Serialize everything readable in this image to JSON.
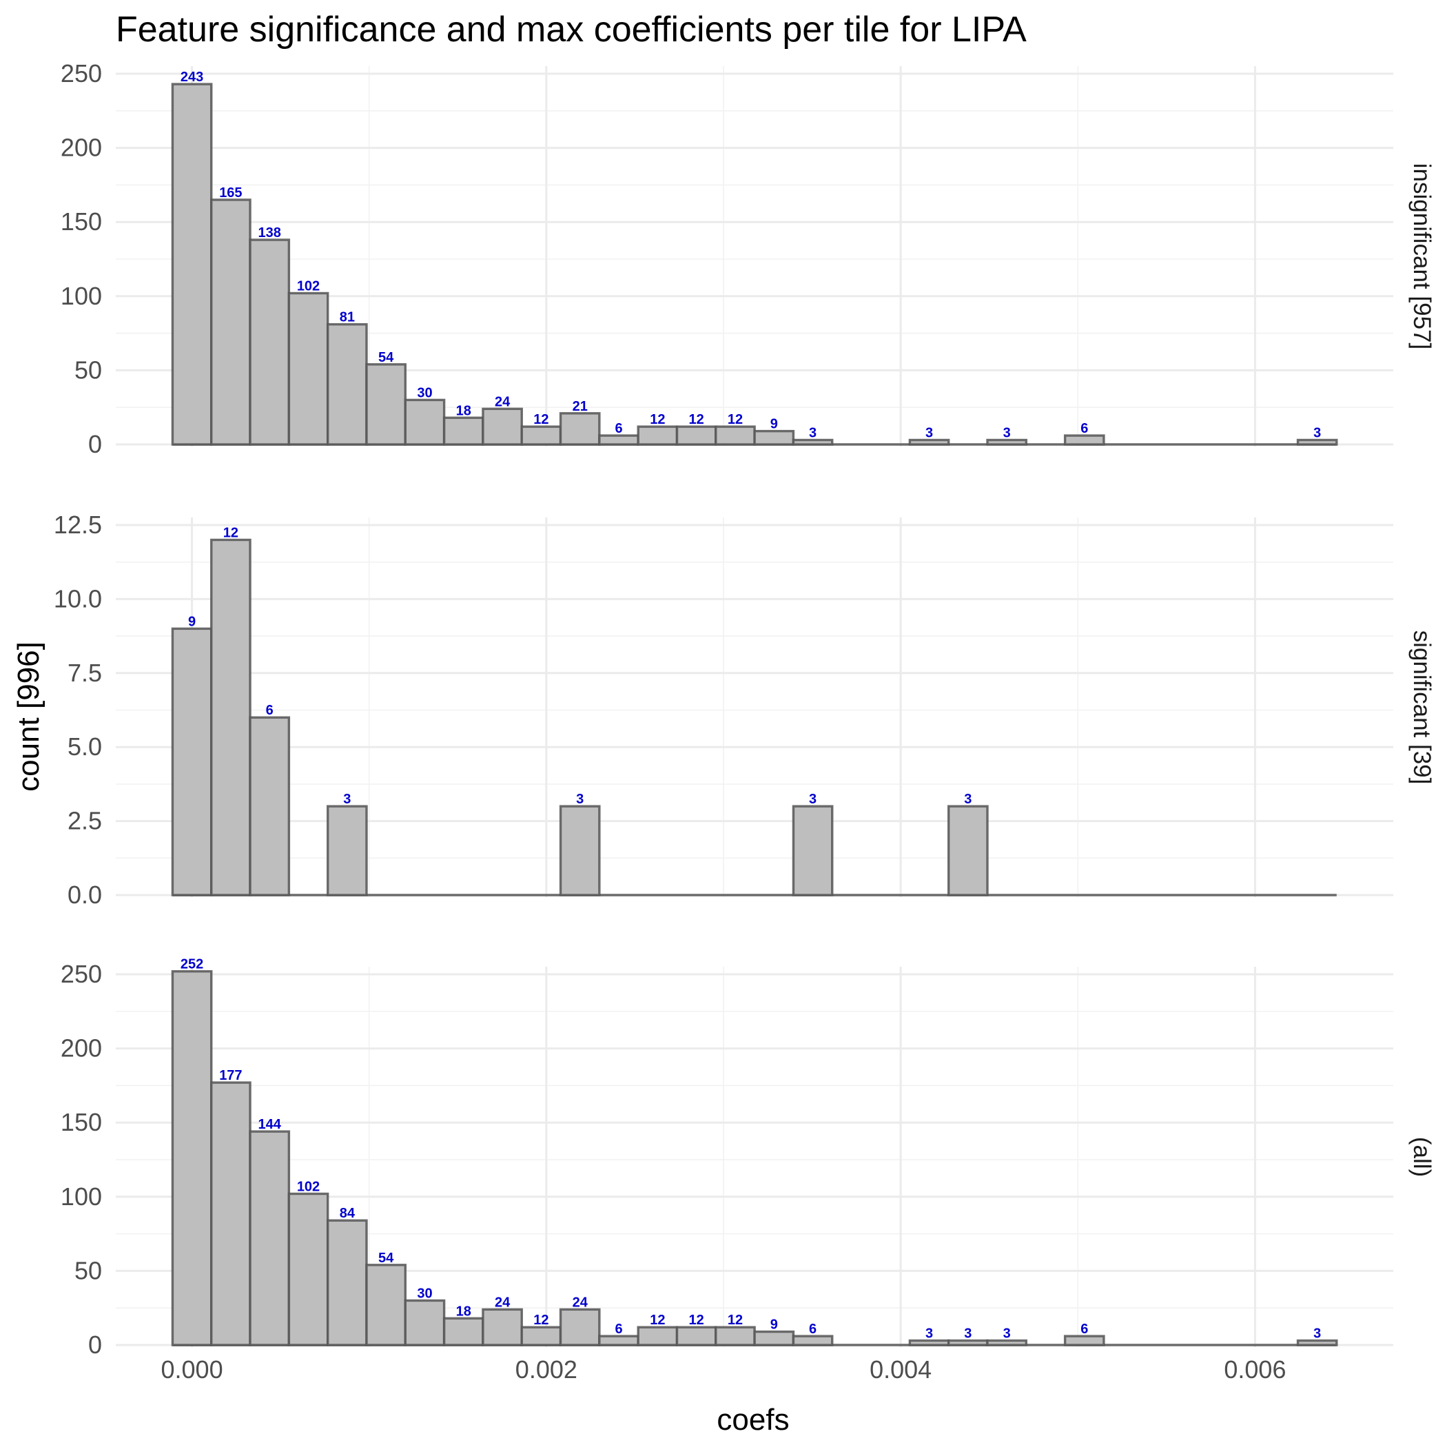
{
  "chart_data": {
    "type": "bar",
    "title": "Feature significance and max coefficients per tile for LIPA",
    "xlabel": "coefs",
    "ylabel": "count [996]",
    "x_ticks": [
      "0.000",
      "0.002",
      "0.004",
      "0.006"
    ],
    "x_tick_values": [
      0.0,
      0.002,
      0.004,
      0.006
    ],
    "xlim": [
      -0.00043,
      0.00678
    ],
    "binwidth": 0.000219,
    "grid": true,
    "facets": [
      {
        "label": "insignificant [957]",
        "ylim": [
          0,
          250
        ],
        "y_ticks": [
          "0",
          "50",
          "100",
          "150",
          "200",
          "250"
        ],
        "y_tick_values": [
          0,
          50,
          100,
          150,
          200,
          250
        ],
        "bin_centers": [
          0.0,
          0.000219,
          0.000438,
          0.000657,
          0.000876,
          0.001095,
          0.001314,
          0.001533,
          0.001752,
          0.001971,
          0.00219,
          0.002409,
          0.002628,
          0.002847,
          0.003066,
          0.003285,
          0.003504,
          0.004161,
          0.004599,
          0.005037,
          0.006351
        ],
        "values": [
          243,
          165,
          138,
          102,
          81,
          54,
          30,
          18,
          24,
          12,
          21,
          6,
          12,
          12,
          12,
          9,
          3,
          3,
          3,
          6,
          3
        ],
        "labels": [
          "243",
          "165",
          "138",
          "102",
          "81",
          "54",
          "30",
          "18",
          "24",
          "12",
          "21",
          "6",
          "12",
          "12",
          "12",
          "9",
          "3",
          "3",
          "3",
          "6",
          "3"
        ]
      },
      {
        "label": "significant [39]",
        "ylim": [
          0,
          12.5
        ],
        "y_ticks": [
          "0.0",
          "2.5",
          "5.0",
          "7.5",
          "10.0",
          "12.5"
        ],
        "y_tick_values": [
          0,
          2.5,
          5,
          7.5,
          10,
          12.5
        ],
        "bin_centers": [
          0.0,
          0.000219,
          0.000438,
          0.000876,
          0.00219,
          0.003504,
          0.00438
        ],
        "values": [
          9,
          12,
          6,
          3,
          3,
          3,
          3
        ],
        "labels": [
          "9",
          "12",
          "6",
          "3",
          "3",
          "3",
          "3"
        ]
      },
      {
        "label": "(all)",
        "ylim": [
          0,
          250
        ],
        "y_ticks": [
          "0",
          "50",
          "100",
          "150",
          "200",
          "250"
        ],
        "y_tick_values": [
          0,
          50,
          100,
          150,
          200,
          250
        ],
        "bin_centers": [
          0.0,
          0.000219,
          0.000438,
          0.000657,
          0.000876,
          0.001095,
          0.001314,
          0.001533,
          0.001752,
          0.001971,
          0.00219,
          0.002409,
          0.002628,
          0.002847,
          0.003066,
          0.003285,
          0.003504,
          0.004161,
          0.00438,
          0.004599,
          0.005037,
          0.006351
        ],
        "values": [
          252,
          177,
          144,
          102,
          84,
          54,
          30,
          18,
          24,
          12,
          24,
          6,
          12,
          12,
          12,
          9,
          6,
          3,
          3,
          3,
          6,
          3
        ],
        "labels": [
          "252",
          "177",
          "144",
          "102",
          "84",
          "54",
          "30",
          "18",
          "24",
          "12",
          "24",
          "6",
          "12",
          "12",
          "12",
          "9",
          "6",
          "3",
          "3",
          "3",
          "6",
          "3"
        ]
      }
    ],
    "colors": {
      "bar_fill": "#bebebe",
      "bar_outline": "#555555",
      "data_label": "#0000cc",
      "grid": "#ebebeb"
    }
  }
}
